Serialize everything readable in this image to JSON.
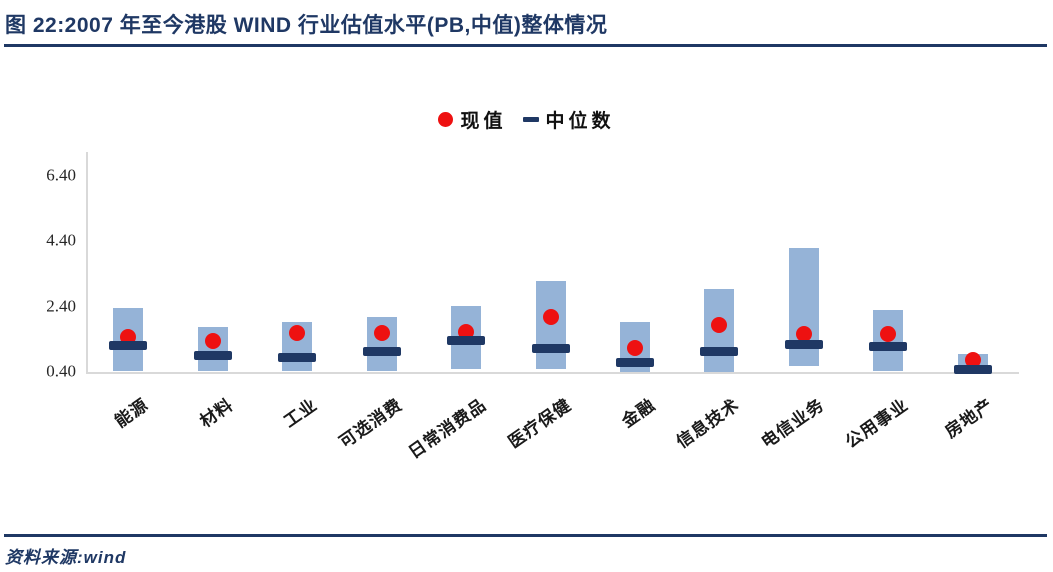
{
  "figure": {
    "title": "图 22:2007 年至今港股 WIND 行业估值水平(PB,中值)整体情况",
    "source": "资料来源:wind"
  },
  "legend": [
    {
      "label": "现值",
      "marker": "red-dot",
      "color": "#EE1111"
    },
    {
      "label": "中位数",
      "marker": "navy-dash",
      "color": "#1F3864"
    }
  ],
  "colors": {
    "accent_navy": "#1F3864",
    "range_bar_fill": "#95B3D7",
    "current_dot_red": "#EE1111",
    "axis_line_gray": "#D9D9D9"
  },
  "chart_data": {
    "type": "bar",
    "subtype": "floating-range-bars-with-median-dash-and-current-dot",
    "title": "2007 年至今港股 WIND 行业估值水平(PB,中值)整体情况",
    "xlabel": "",
    "ylabel": "",
    "grid": false,
    "legend_position": "top-center",
    "ylim": [
      0.4,
      7.13
    ],
    "yticks": [
      0.4,
      2.4,
      4.4,
      6.4
    ],
    "ytick_labels": [
      "0.40",
      "2.40",
      "4.40",
      "6.40"
    ],
    "categories": [
      "能源",
      "材料",
      "工业",
      "可选消费",
      "日常消费品",
      "医疗保健",
      "金融",
      "信息技术",
      "电信业务",
      "公用事业",
      "房地产"
    ],
    "series": [
      {
        "name": "",
        "role": "range",
        "type": "range-bar",
        "color": "#95B3D7",
        "high": [
          2.35,
          1.78,
          1.93,
          2.08,
          2.43,
          3.19,
          1.92,
          2.93,
          4.19,
          2.3,
          0.95
        ],
        "low": [
          0.44,
          0.43,
          0.42,
          0.43,
          0.49,
          0.5,
          0.41,
          0.41,
          0.58,
          0.44,
          0.4
        ]
      },
      {
        "name": "中位数",
        "role": "median",
        "type": "dash-marker",
        "color": "#1F3864",
        "values": [
          1.21,
          0.9,
          0.83,
          1.03,
          1.36,
          1.13,
          0.68,
          1.03,
          1.25,
          1.19,
          0.48
        ]
      },
      {
        "name": "现值",
        "role": "current",
        "type": "dot-marker",
        "color": "#EE1111",
        "values": [
          1.47,
          1.36,
          1.58,
          1.58,
          1.63,
          2.09,
          1.13,
          1.84,
          1.56,
          1.55,
          0.77
        ]
      }
    ]
  }
}
